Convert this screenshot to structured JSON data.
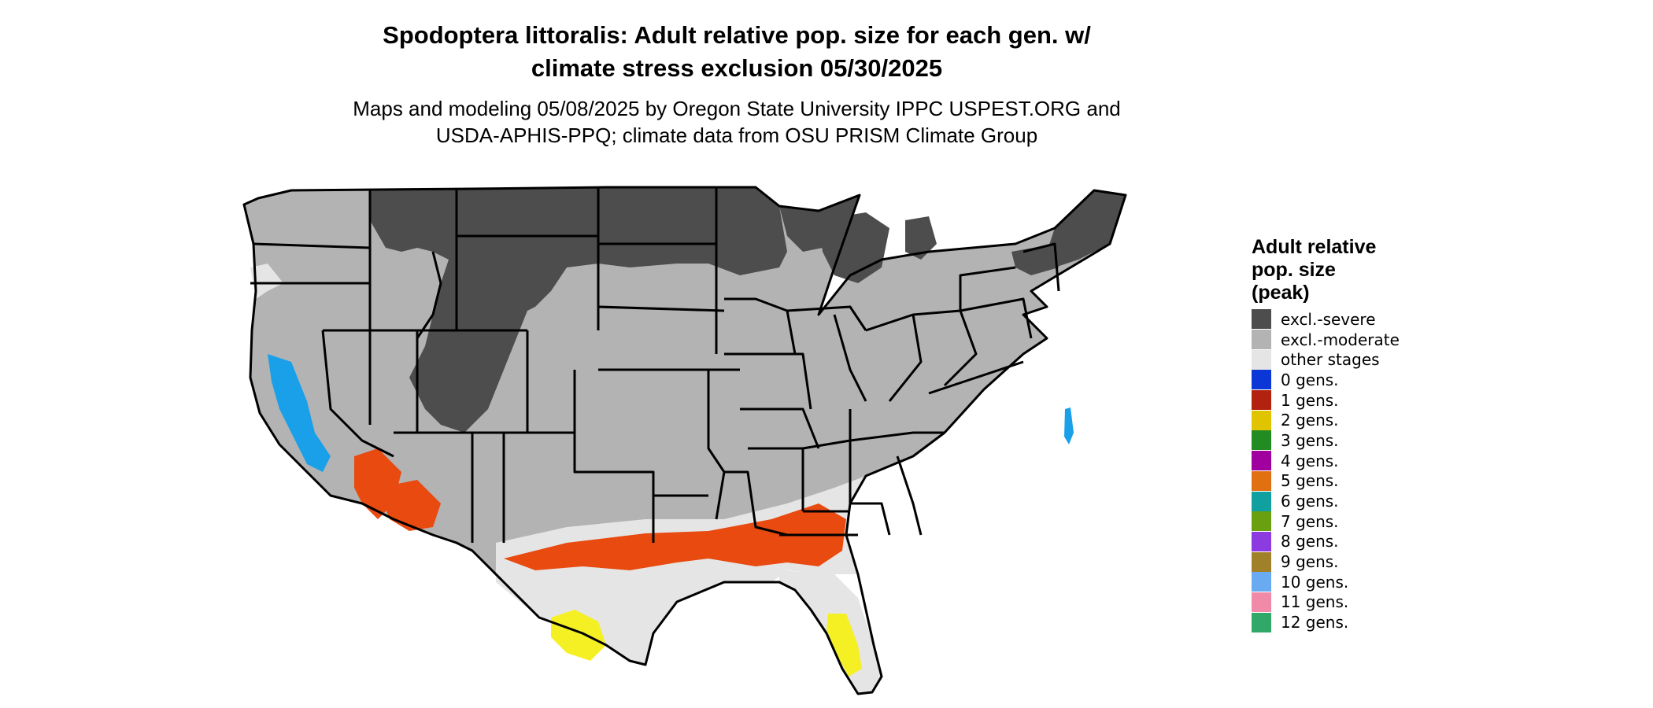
{
  "title_line1": "Spodoptera littoralis: Adult relative pop. size for each gen. w/",
  "title_line2": "climate stress exclusion 05/30/2025",
  "subtitle_line1": "Maps and modeling 05/08/2025 by Oregon State University IPPC USPEST.ORG and",
  "subtitle_line2": "USDA-APHIS-PPQ; climate data from OSU PRISM Climate Group",
  "legend": {
    "title_line1": "Adult relative",
    "title_line2": "pop. size",
    "title_line3": "(peak)",
    "items": [
      {
        "label": "excl.-severe",
        "color": "#4d4d4d"
      },
      {
        "label": "excl.-moderate",
        "color": "#b3b3b3"
      },
      {
        "label": "other stages",
        "color": "#e5e5e5"
      },
      {
        "label": "0 gens.",
        "color": "#0a37d6"
      },
      {
        "label": "1 gens.",
        "color": "#b2230f"
      },
      {
        "label": "2 gens.",
        "color": "#e0c400"
      },
      {
        "label": "3 gens.",
        "color": "#228b22"
      },
      {
        "label": "4 gens.",
        "color": "#a0009e"
      },
      {
        "label": "5 gens.",
        "color": "#e07010"
      },
      {
        "label": "6 gens.",
        "color": "#10a0a0"
      },
      {
        "label": "7 gens.",
        "color": "#6aa010"
      },
      {
        "label": "8 gens.",
        "color": "#8b3be0"
      },
      {
        "label": "9 gens.",
        "color": "#a08028"
      },
      {
        "label": "10 gens.",
        "color": "#6aaaf0"
      },
      {
        "label": "11 gens.",
        "color": "#f08aa8"
      },
      {
        "label": "12 gens.",
        "color": "#30a868"
      }
    ]
  },
  "map_colors": {
    "severe": "#4d4d4d",
    "moderate": "#b3b3b3",
    "other": "#e5e5e5",
    "one_gen": "#e84a10",
    "two_gen": "#f5f024",
    "zero_gen": "#1aa0e8",
    "boundary": "#000000"
  }
}
